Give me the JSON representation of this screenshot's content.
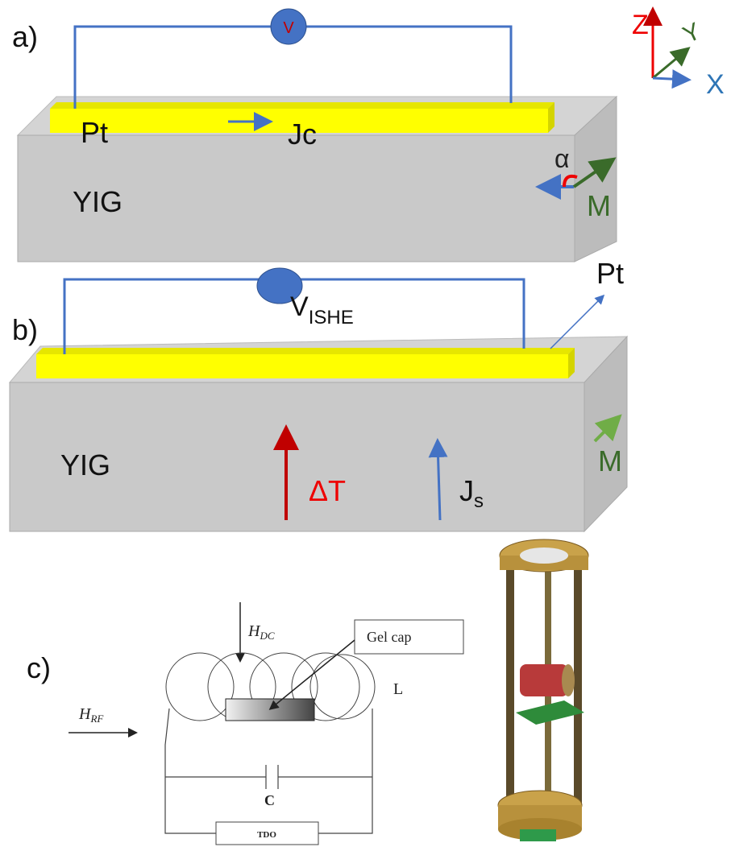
{
  "panel_a": {
    "label": "a)",
    "voltmeter": "V",
    "strip": "Pt",
    "current": "Jc",
    "block": "YIG",
    "angle": "α",
    "magnetization": "M"
  },
  "axes": {
    "z": "Z",
    "y": "Y",
    "x": "X"
  },
  "panel_b": {
    "label": "b)",
    "voltage": {
      "symbol": "V",
      "subscript": "ISHE"
    },
    "strip": "Pt",
    "block": "YIG",
    "gradient": "ΔT",
    "spin_current": {
      "symbol": "J",
      "subscript": "s"
    },
    "magnetization": "M"
  },
  "panel_c": {
    "label": "c)",
    "h_dc": {
      "symbol": "H",
      "subscript": "DC"
    },
    "sample": "Gel cap",
    "h_rf": {
      "symbol": "H",
      "subscript": "RF"
    },
    "inductor": "L",
    "capacitor": "C",
    "oscillator": "TDO"
  }
}
